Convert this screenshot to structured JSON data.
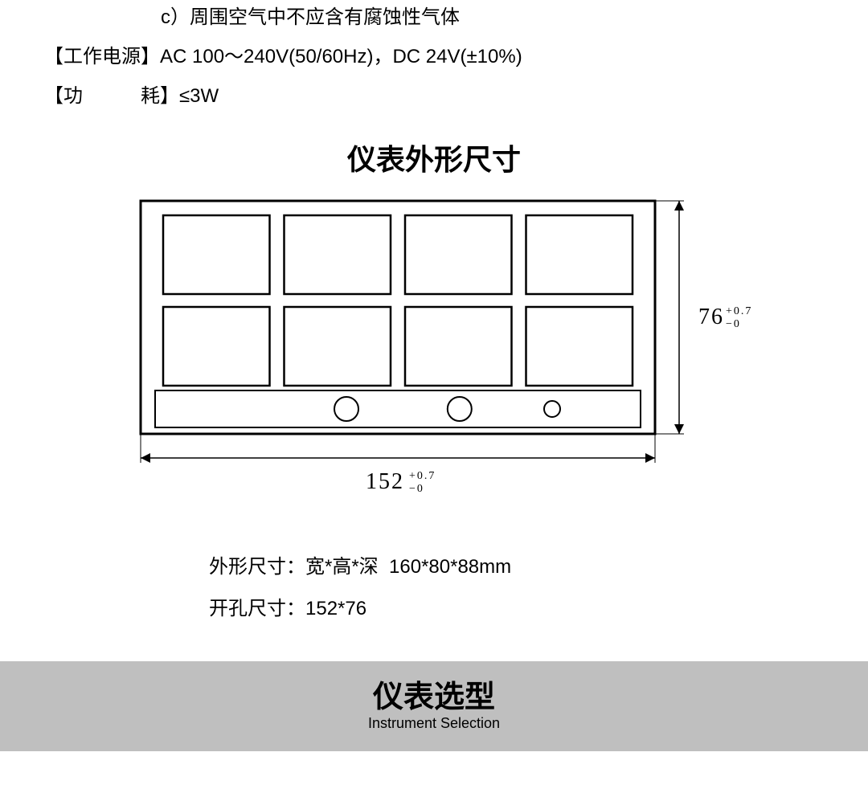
{
  "spec_c": "c）周围空气中不应含有腐蚀性气体",
  "power_label": "【工作电源】",
  "power_value": "AC 100～240V(50/60Hz)，DC 24V(±10%)",
  "consumption_label_open": "【功",
  "consumption_label_close": "耗】",
  "consumption_value": "≤3W",
  "dim_section_title": "仪表外形尺寸",
  "diagram": {
    "outer_w": 640,
    "outer_h": 290,
    "inner_rows": 2,
    "inner_cols": 4,
    "strip_h": 46,
    "circles": [
      0.4,
      0.62,
      0.8
    ],
    "stroke": "#000000"
  },
  "width_dim_main": "152",
  "width_tol_sup": "+0.7",
  "width_tol_sub": "−0",
  "height_dim_main": "76",
  "height_tol_sup": "+0.7",
  "height_tol_sub": "−0",
  "overall_label": "外形尺寸：宽*高*深",
  "overall_value": "160*80*88mm",
  "cutout_label": "开孔尺寸：",
  "cutout_value": "152*76",
  "footer_title": "仪表选型",
  "footer_sub": "Instrument Selection"
}
